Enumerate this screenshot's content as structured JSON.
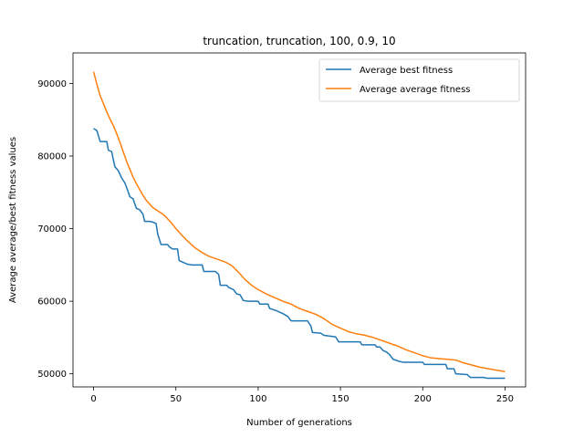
{
  "chart_data": {
    "type": "line",
    "title": "truncation, truncation, 100, 0.9, 10",
    "xlabel": "Number of generations",
    "ylabel": "Average average/best fitness values",
    "xlim": [
      -12.5,
      262.5
    ],
    "ylim": [
      48200,
      94200
    ],
    "xticks": [
      0,
      50,
      100,
      150,
      200,
      250
    ],
    "yticks": [
      50000,
      60000,
      70000,
      80000,
      90000
    ],
    "grid": false,
    "legend_position": "top-right",
    "series": [
      {
        "name": "Average best fitness",
        "color": "#1f77b4",
        "points": [
          [
            0,
            83800
          ],
          [
            2,
            83500
          ],
          [
            4,
            82000
          ],
          [
            8,
            82000
          ],
          [
            9,
            80800
          ],
          [
            11,
            80600
          ],
          [
            12,
            79500
          ],
          [
            13,
            78500
          ],
          [
            15,
            78000
          ],
          [
            17,
            77000
          ],
          [
            19,
            76300
          ],
          [
            21,
            75100
          ],
          [
            22,
            74400
          ],
          [
            24,
            74100
          ],
          [
            26,
            72800
          ],
          [
            28,
            72600
          ],
          [
            30,
            72000
          ],
          [
            31,
            71000
          ],
          [
            34,
            71000
          ],
          [
            36,
            70900
          ],
          [
            38,
            70700
          ],
          [
            39,
            69200
          ],
          [
            41,
            67800
          ],
          [
            45,
            67800
          ],
          [
            46,
            67500
          ],
          [
            48,
            67200
          ],
          [
            51,
            67200
          ],
          [
            52,
            65600
          ],
          [
            54,
            65400
          ],
          [
            57,
            65100
          ],
          [
            60,
            65000
          ],
          [
            66,
            65000
          ],
          [
            67,
            64100
          ],
          [
            74,
            64100
          ],
          [
            76,
            63700
          ],
          [
            77,
            62200
          ],
          [
            81,
            62200
          ],
          [
            82,
            61900
          ],
          [
            85,
            61600
          ],
          [
            87,
            61000
          ],
          [
            89,
            60900
          ],
          [
            91,
            60100
          ],
          [
            94,
            60000
          ],
          [
            100,
            60000
          ],
          [
            101,
            59600
          ],
          [
            106,
            59600
          ],
          [
            107,
            59000
          ],
          [
            111,
            58700
          ],
          [
            115,
            58300
          ],
          [
            118,
            57900
          ],
          [
            120,
            57300
          ],
          [
            130,
            57300
          ],
          [
            132,
            56600
          ],
          [
            133,
            55700
          ],
          [
            138,
            55600
          ],
          [
            140,
            55300
          ],
          [
            147,
            55100
          ],
          [
            149,
            54400
          ],
          [
            162,
            54400
          ],
          [
            163,
            54000
          ],
          [
            171,
            54000
          ],
          [
            172,
            53700
          ],
          [
            174,
            53700
          ],
          [
            176,
            53200
          ],
          [
            178,
            53000
          ],
          [
            180,
            52600
          ],
          [
            182,
            52000
          ],
          [
            186,
            51700
          ],
          [
            188,
            51600
          ],
          [
            200,
            51600
          ],
          [
            201,
            51300
          ],
          [
            214,
            51300
          ],
          [
            215,
            50700
          ],
          [
            219,
            50700
          ],
          [
            220,
            50000
          ],
          [
            227,
            49900
          ],
          [
            229,
            49500
          ],
          [
            237,
            49500
          ],
          [
            239,
            49400
          ],
          [
            250,
            49400
          ]
        ]
      },
      {
        "name": "Average average fitness",
        "color": "#ff7f0e",
        "points": [
          [
            0,
            91600
          ],
          [
            2,
            89900
          ],
          [
            4,
            88300
          ],
          [
            6,
            87200
          ],
          [
            8,
            86100
          ],
          [
            10,
            85100
          ],
          [
            12,
            84200
          ],
          [
            14,
            83100
          ],
          [
            16,
            81900
          ],
          [
            18,
            80600
          ],
          [
            20,
            79300
          ],
          [
            22,
            78200
          ],
          [
            24,
            77100
          ],
          [
            26,
            76200
          ],
          [
            28,
            75400
          ],
          [
            30,
            74600
          ],
          [
            32,
            73900
          ],
          [
            34,
            73400
          ],
          [
            36,
            72900
          ],
          [
            38,
            72600
          ],
          [
            40,
            72300
          ],
          [
            42,
            72000
          ],
          [
            44,
            71600
          ],
          [
            46,
            71100
          ],
          [
            48,
            70600
          ],
          [
            50,
            70000
          ],
          [
            54,
            69000
          ],
          [
            58,
            68100
          ],
          [
            62,
            67300
          ],
          [
            66,
            66700
          ],
          [
            70,
            66200
          ],
          [
            75,
            65800
          ],
          [
            80,
            65400
          ],
          [
            84,
            64900
          ],
          [
            88,
            64000
          ],
          [
            92,
            63000
          ],
          [
            96,
            62200
          ],
          [
            100,
            61600
          ],
          [
            105,
            61000
          ],
          [
            110,
            60500
          ],
          [
            115,
            60000
          ],
          [
            120,
            59600
          ],
          [
            125,
            59000
          ],
          [
            130,
            58600
          ],
          [
            135,
            58200
          ],
          [
            140,
            57600
          ],
          [
            145,
            56800
          ],
          [
            150,
            56300
          ],
          [
            155,
            55800
          ],
          [
            160,
            55500
          ],
          [
            165,
            55300
          ],
          [
            170,
            55000
          ],
          [
            175,
            54600
          ],
          [
            180,
            54200
          ],
          [
            185,
            53800
          ],
          [
            190,
            53300
          ],
          [
            195,
            52900
          ],
          [
            200,
            52500
          ],
          [
            205,
            52200
          ],
          [
            210,
            52100
          ],
          [
            215,
            52000
          ],
          [
            220,
            51900
          ],
          [
            225,
            51500
          ],
          [
            230,
            51200
          ],
          [
            235,
            50900
          ],
          [
            240,
            50700
          ],
          [
            245,
            50500
          ],
          [
            250,
            50300
          ]
        ]
      }
    ]
  }
}
